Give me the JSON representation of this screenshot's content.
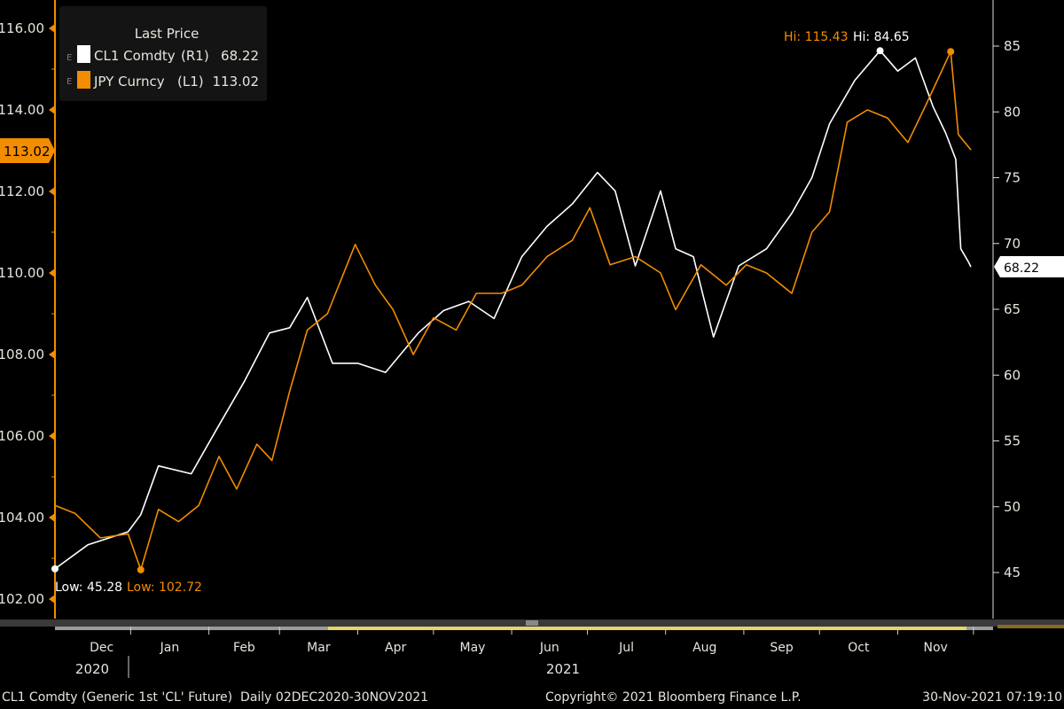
{
  "colors": {
    "background": "#000000",
    "cl1": "#ffffff",
    "jpy": "#f28c00",
    "legend_bg": "#141414",
    "label_text": "#e8e4dc",
    "scroll_highlight": "#e6d36a"
  },
  "legend": {
    "title": "Last Price",
    "items": [
      {
        "expand": "E",
        "name": "CL1 Comdty",
        "axis": "(R1)",
        "value": "68.22",
        "color": "#ffffff"
      },
      {
        "expand": "E",
        "name": "JPY Curncy",
        "axis": "(L1)",
        "value": "113.02",
        "color": "#f28c00"
      }
    ]
  },
  "chart_data": {
    "type": "line",
    "left_axis": {
      "ticks": [
        "102.00",
        "104.00",
        "106.00",
        "108.00",
        "110.00",
        "112.00",
        "114.00",
        "116.00"
      ],
      "range": [
        101.5,
        116.5
      ]
    },
    "right_axis": {
      "ticks": [
        "45",
        "50",
        "55",
        "60",
        "65",
        "70",
        "75",
        "80",
        "85"
      ],
      "range": [
        43,
        87
      ]
    },
    "x_range": [
      "2020-12-02",
      "2021-11-30"
    ],
    "x_ticks": [
      "Dec",
      "Jan",
      "Feb",
      "Mar",
      "Apr",
      "May",
      "Jun",
      "Jul",
      "Aug",
      "Sep",
      "Oct",
      "Nov"
    ],
    "x_years": [
      "2020",
      "2021"
    ],
    "grid": false,
    "legend_position": "top-left",
    "last_labels": {
      "left": "113.02",
      "right": "68.22"
    },
    "annotations": {
      "cl1_high": "Hi: 84.65",
      "jpy_high": "Hi: 115.43",
      "cl1_low": "Low: 45.28",
      "jpy_low": "Low: 102.72"
    },
    "series": [
      {
        "name": "CL1 Comdty",
        "axis": "right",
        "color": "#ffffff",
        "points": [
          [
            "2020-12-02",
            45.28
          ],
          [
            "2020-12-15",
            47.1
          ],
          [
            "2020-12-31",
            48.1
          ],
          [
            "2021-01-05",
            49.4
          ],
          [
            "2021-01-12",
            53.1
          ],
          [
            "2021-01-25",
            52.5
          ],
          [
            "2021-02-05",
            56.2
          ],
          [
            "2021-02-15",
            59.5
          ],
          [
            "2021-02-25",
            63.2
          ],
          [
            "2021-03-05",
            63.6
          ],
          [
            "2021-03-12",
            65.9
          ],
          [
            "2021-03-22",
            60.9
          ],
          [
            "2021-04-01",
            60.9
          ],
          [
            "2021-04-12",
            60.2
          ],
          [
            "2021-04-25",
            63.2
          ],
          [
            "2021-05-05",
            64.9
          ],
          [
            "2021-05-15",
            65.6
          ],
          [
            "2021-05-25",
            64.3
          ],
          [
            "2021-06-05",
            69.0
          ],
          [
            "2021-06-15",
            71.3
          ],
          [
            "2021-06-25",
            73.0
          ],
          [
            "2021-07-05",
            75.4
          ],
          [
            "2021-07-12",
            74.0
          ],
          [
            "2021-07-20",
            68.3
          ],
          [
            "2021-07-30",
            74.0
          ],
          [
            "2021-08-05",
            69.6
          ],
          [
            "2021-08-12",
            69.0
          ],
          [
            "2021-08-20",
            62.9
          ],
          [
            "2021-08-30",
            68.3
          ],
          [
            "2021-09-10",
            69.6
          ],
          [
            "2021-09-20",
            72.3
          ],
          [
            "2021-09-28",
            75.0
          ],
          [
            "2021-10-05",
            79.1
          ],
          [
            "2021-10-15",
            82.4
          ],
          [
            "2021-10-25",
            84.65
          ],
          [
            "2021-11-01",
            83.1
          ],
          [
            "2021-11-08",
            84.1
          ],
          [
            "2021-11-15",
            80.4
          ],
          [
            "2021-11-20",
            78.4
          ],
          [
            "2021-11-24",
            76.4
          ],
          [
            "2021-11-26",
            69.6
          ],
          [
            "2021-11-29",
            68.6
          ],
          [
            "2021-11-30",
            68.22
          ]
        ]
      },
      {
        "name": "JPY Curncy",
        "axis": "left",
        "color": "#f28c00",
        "points": [
          [
            "2020-12-02",
            104.3
          ],
          [
            "2020-12-10",
            104.1
          ],
          [
            "2020-12-20",
            103.5
          ],
          [
            "2020-12-31",
            103.6
          ],
          [
            "2021-01-05",
            102.72
          ],
          [
            "2021-01-12",
            104.2
          ],
          [
            "2021-01-20",
            103.9
          ],
          [
            "2021-01-28",
            104.3
          ],
          [
            "2021-02-05",
            105.5
          ],
          [
            "2021-02-12",
            104.7
          ],
          [
            "2021-02-20",
            105.8
          ],
          [
            "2021-02-26",
            105.4
          ],
          [
            "2021-03-05",
            107.1
          ],
          [
            "2021-03-12",
            108.6
          ],
          [
            "2021-03-20",
            109.0
          ],
          [
            "2021-03-31",
            110.7
          ],
          [
            "2021-04-08",
            109.7
          ],
          [
            "2021-04-15",
            109.1
          ],
          [
            "2021-04-23",
            108.0
          ],
          [
            "2021-05-01",
            108.9
          ],
          [
            "2021-05-10",
            108.6
          ],
          [
            "2021-05-18",
            109.5
          ],
          [
            "2021-05-28",
            109.5
          ],
          [
            "2021-06-05",
            109.7
          ],
          [
            "2021-06-15",
            110.4
          ],
          [
            "2021-06-25",
            110.8
          ],
          [
            "2021-07-02",
            111.6
          ],
          [
            "2021-07-10",
            110.2
          ],
          [
            "2021-07-20",
            110.4
          ],
          [
            "2021-07-30",
            110.0
          ],
          [
            "2021-08-05",
            109.1
          ],
          [
            "2021-08-15",
            110.2
          ],
          [
            "2021-08-25",
            109.7
          ],
          [
            "2021-09-02",
            110.2
          ],
          [
            "2021-09-10",
            110.0
          ],
          [
            "2021-09-20",
            109.5
          ],
          [
            "2021-09-28",
            111.0
          ],
          [
            "2021-10-05",
            111.5
          ],
          [
            "2021-10-12",
            113.7
          ],
          [
            "2021-10-20",
            114.0
          ],
          [
            "2021-10-28",
            113.8
          ],
          [
            "2021-11-05",
            113.2
          ],
          [
            "2021-11-12",
            114.1
          ],
          [
            "2021-11-22",
            115.43
          ],
          [
            "2021-11-25",
            113.4
          ],
          [
            "2021-11-30",
            113.02
          ]
        ]
      }
    ]
  },
  "footer": {
    "description": "CL1 Comdty (Generic 1st 'CL' Future)  Daily 02DEC2020-30NOV2021",
    "copyright": "Copyright© 2021 Bloomberg Finance L.P.",
    "timestamp": "30-Nov-2021 07:19:10"
  }
}
